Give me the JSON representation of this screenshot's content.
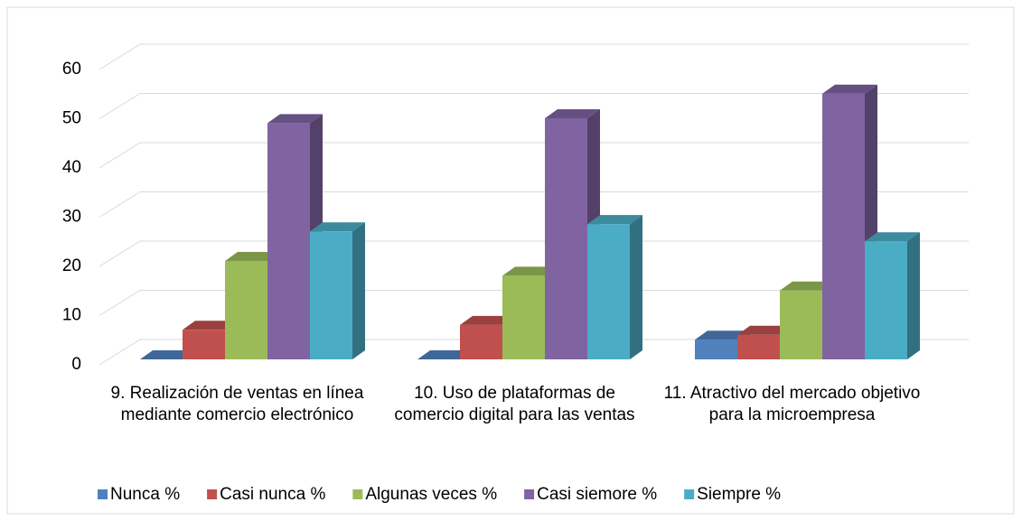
{
  "chart_data": {
    "type": "bar3d",
    "categories": [
      "9.    Realización de ventas en línea mediante comercio electrónico",
      "10.    Uso de plataformas de comercio digital para las ventas",
      "11.    Atractivo del mercado objetivo para la microempresa"
    ],
    "series": [
      {
        "name": "Nunca %",
        "color": "#4f81bd",
        "values": [
          0,
          0,
          4
        ]
      },
      {
        "name": "Casi nunca %",
        "color": "#c0504d",
        "values": [
          6,
          7,
          5
        ]
      },
      {
        "name": "Algunas veces %",
        "color": "#9bbb59",
        "values": [
          20,
          17,
          14
        ]
      },
      {
        "name": "Casi siemore %",
        "color": "#8064a2",
        "values": [
          48,
          49,
          54
        ]
      },
      {
        "name": "Siempre %",
        "color": "#4bacc6",
        "values": [
          26,
          27.5,
          24
        ]
      }
    ],
    "ylim": [
      0,
      60
    ],
    "yticks": [
      0,
      10,
      20,
      30,
      40,
      50,
      60
    ],
    "grid": true,
    "legend": "bottom"
  }
}
